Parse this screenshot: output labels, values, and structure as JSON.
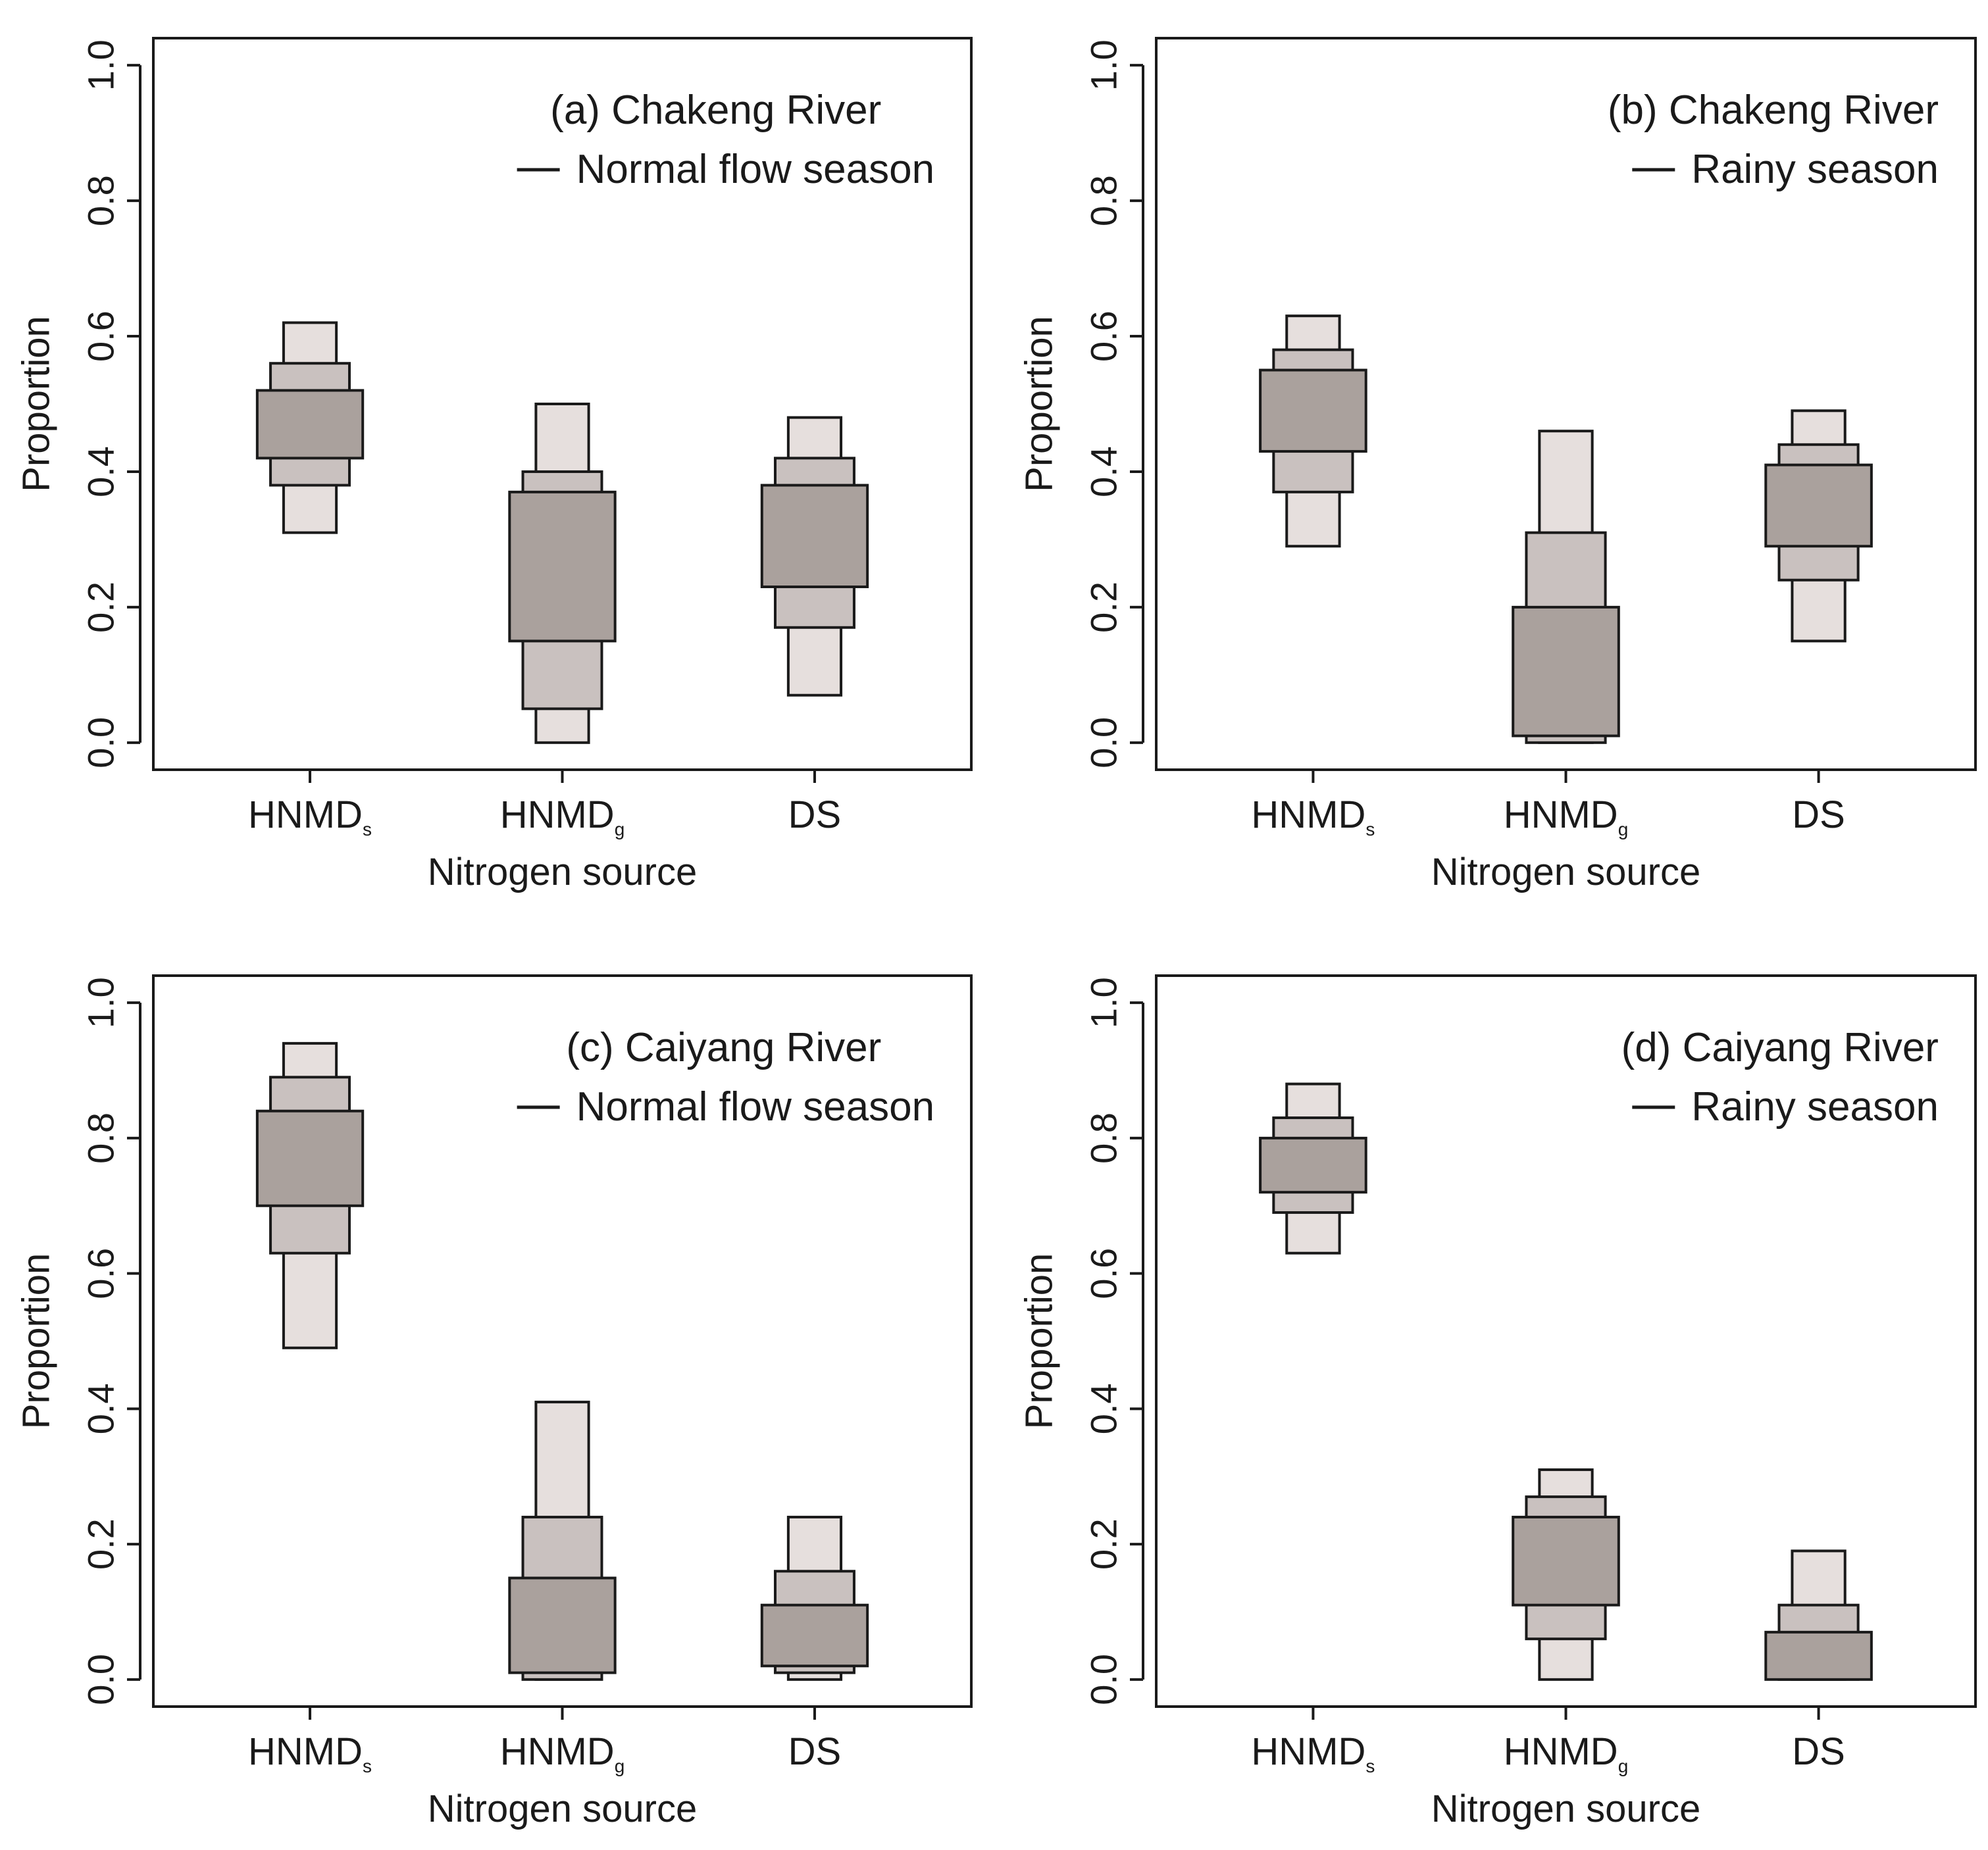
{
  "colors": {
    "inner": "#aaa19d",
    "middle": "#c9c1bf",
    "outer": "#e6dfdd",
    "stroke": "#1a1a1a"
  },
  "chart_data": [
    {
      "type": "box",
      "title_line1": "(a) Chakeng River",
      "title_line2": "Normal flow season",
      "xlabel": "Nitrogen source",
      "ylabel": "Proportion",
      "ylim": [
        -0.04,
        1.04
      ],
      "yticks": [
        "0.0",
        "0.2",
        "0.4",
        "0.6",
        "0.8",
        "1.0"
      ],
      "categories": [
        {
          "main": "HNMD",
          "sub": "s"
        },
        {
          "main": "HNMD",
          "sub": "g"
        },
        {
          "main": "DS",
          "sub": ""
        }
      ],
      "series": [
        {
          "outer": [
            0.31,
            0.62
          ],
          "middle": [
            0.38,
            0.56
          ],
          "inner": [
            0.42,
            0.52
          ]
        },
        {
          "outer": [
            0.0,
            0.5
          ],
          "middle": [
            0.05,
            0.4
          ],
          "inner": [
            0.15,
            0.37
          ]
        },
        {
          "outer": [
            0.07,
            0.48
          ],
          "middle": [
            0.17,
            0.42
          ],
          "inner": [
            0.23,
            0.38
          ]
        }
      ]
    },
    {
      "type": "box",
      "title_line1": "(b) Chakeng River",
      "title_line2": "Rainy season",
      "xlabel": "Nitrogen source",
      "ylabel": "Proportion",
      "ylim": [
        -0.04,
        1.04
      ],
      "yticks": [
        "0.0",
        "0.2",
        "0.4",
        "0.6",
        "0.8",
        "1.0"
      ],
      "categories": [
        {
          "main": "HNMD",
          "sub": "s"
        },
        {
          "main": "HNMD",
          "sub": "g"
        },
        {
          "main": "DS",
          "sub": ""
        }
      ],
      "series": [
        {
          "outer": [
            0.29,
            0.63
          ],
          "middle": [
            0.37,
            0.58
          ],
          "inner": [
            0.43,
            0.55
          ]
        },
        {
          "outer": [
            0.0,
            0.46
          ],
          "middle": [
            0.0,
            0.31
          ],
          "inner": [
            0.01,
            0.2
          ]
        },
        {
          "outer": [
            0.15,
            0.49
          ],
          "middle": [
            0.24,
            0.44
          ],
          "inner": [
            0.29,
            0.41
          ]
        }
      ]
    },
    {
      "type": "box",
      "title_line1": "(c) Caiyang River",
      "title_line2": "Normal flow season",
      "xlabel": "Nitrogen source",
      "ylabel": "Proportion",
      "ylim": [
        -0.04,
        1.04
      ],
      "yticks": [
        "0.0",
        "0.2",
        "0.4",
        "0.6",
        "0.8",
        "1.0"
      ],
      "categories": [
        {
          "main": "HNMD",
          "sub": "s"
        },
        {
          "main": "HNMD",
          "sub": "g"
        },
        {
          "main": "DS",
          "sub": ""
        }
      ],
      "series": [
        {
          "outer": [
            0.49,
            0.94
          ],
          "middle": [
            0.63,
            0.89
          ],
          "inner": [
            0.7,
            0.84
          ]
        },
        {
          "outer": [
            0.0,
            0.41
          ],
          "middle": [
            0.0,
            0.24
          ],
          "inner": [
            0.01,
            0.15
          ]
        },
        {
          "outer": [
            0.0,
            0.24
          ],
          "middle": [
            0.01,
            0.16
          ],
          "inner": [
            0.02,
            0.11
          ]
        }
      ]
    },
    {
      "type": "box",
      "title_line1": "(d) Caiyang River",
      "title_line2": "Rainy  season",
      "xlabel": "Nitrogen source",
      "ylabel": "Proportion",
      "ylim": [
        -0.04,
        1.04
      ],
      "yticks": [
        "0.0",
        "0.2",
        "0.4",
        "0.6",
        "0.8",
        "1.0"
      ],
      "categories": [
        {
          "main": "HNMD",
          "sub": "s"
        },
        {
          "main": "HNMD",
          "sub": "g"
        },
        {
          "main": "DS",
          "sub": ""
        }
      ],
      "series": [
        {
          "outer": [
            0.63,
            0.88
          ],
          "middle": [
            0.69,
            0.83
          ],
          "inner": [
            0.72,
            0.8
          ]
        },
        {
          "outer": [
            0.0,
            0.31
          ],
          "middle": [
            0.06,
            0.27
          ],
          "inner": [
            0.11,
            0.24
          ]
        },
        {
          "outer": [
            0.0,
            0.19
          ],
          "middle": [
            0.0,
            0.11
          ],
          "inner": [
            0.0,
            0.07
          ]
        }
      ]
    }
  ]
}
